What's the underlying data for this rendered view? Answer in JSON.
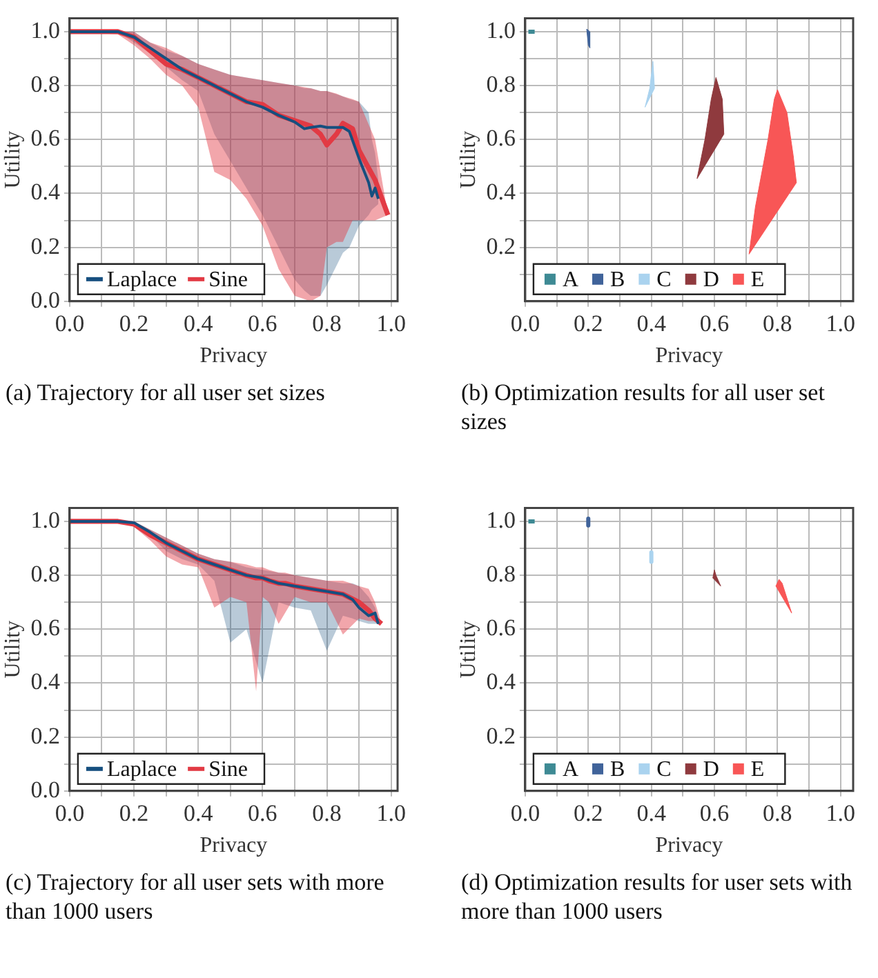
{
  "chart_data": [
    {
      "type": "line",
      "title": "(a) Trajectory for all user set sizes",
      "xlabel": "Privacy",
      "ylabel": "Utility",
      "xlim": [
        0,
        1.02
      ],
      "ylim": [
        0,
        1.05
      ],
      "xticks": [
        {
          "value": 0,
          "label": "0.0"
        },
        {
          "value": 0.1,
          "label": null
        },
        0.2,
        {
          "value": 0.3,
          "label": null
        },
        0.4,
        {
          "value": 0.5,
          "label": null
        },
        0.6,
        {
          "value": 0.7,
          "label": null
        },
        0.8,
        {
          "value": 0.9,
          "label": null
        },
        {
          "value": 1,
          "label": "1.0"
        }
      ],
      "yticks": [
        {
          "value": 0,
          "label": "0.0"
        },
        {
          "value": 0.1,
          "label": null
        },
        0.2,
        {
          "value": 0.3,
          "label": null
        },
        0.4,
        {
          "value": 0.5,
          "label": null
        },
        0.6,
        {
          "value": 0.7,
          "label": null
        },
        0.8,
        {
          "value": 0.9,
          "label": null
        },
        {
          "value": 1,
          "label": "1.0"
        }
      ],
      "grid": true,
      "legend": "bottom left",
      "marker": "none",
      "line_style": "solid",
      "series": [
        {
          "name": "Laplace",
          "color": "#164f7f",
          "x": [
            0,
            0.15,
            0.2,
            0.25,
            0.3,
            0.35,
            0.4,
            0.45,
            0.5,
            0.55,
            0.6,
            0.65,
            0.7,
            0.73,
            0.75,
            0.78,
            0.8,
            0.85,
            0.87,
            0.9,
            0.93,
            0.94,
            0.95,
            0.96
          ],
          "values": [
            1,
            1,
            0.98,
            0.94,
            0.9,
            0.86,
            0.83,
            0.8,
            0.77,
            0.74,
            0.72,
            0.69,
            0.665,
            0.64,
            0.645,
            0.65,
            0.645,
            0.645,
            0.63,
            0.53,
            0.44,
            0.39,
            0.42,
            0.38
          ],
          "upper": [
            1,
            1,
            1,
            0.96,
            0.93,
            0.91,
            0.88,
            0.86,
            0.84,
            0.83,
            0.82,
            0.81,
            0.8,
            0.79,
            0.79,
            0.78,
            0.78,
            0.76,
            0.75,
            0.74,
            0.7,
            0.6,
            0.55,
            0.45
          ],
          "lower": [
            1,
            1,
            0.96,
            0.92,
            0.87,
            0.82,
            0.78,
            0.62,
            0.52,
            0.42,
            0.32,
            0.2,
            0.08,
            0.04,
            0.02,
            0.02,
            0.06,
            0.18,
            0.2,
            0.28,
            0.32,
            0.34,
            0.35,
            0.36
          ]
        },
        {
          "name": "Sine",
          "color": "#e23a44",
          "x": [
            0,
            0.15,
            0.2,
            0.25,
            0.3,
            0.35,
            0.4,
            0.45,
            0.5,
            0.55,
            0.6,
            0.65,
            0.7,
            0.75,
            0.78,
            0.8,
            0.83,
            0.85,
            0.88,
            0.9,
            0.95,
            0.99
          ],
          "values": [
            1,
            1,
            0.98,
            0.93,
            0.88,
            0.86,
            0.83,
            0.8,
            0.77,
            0.74,
            0.73,
            0.69,
            0.67,
            0.65,
            0.62,
            0.58,
            0.62,
            0.66,
            0.64,
            0.56,
            0.45,
            0.32
          ],
          "upper": [
            1,
            1,
            1,
            0.96,
            0.94,
            0.91,
            0.88,
            0.86,
            0.84,
            0.83,
            0.82,
            0.81,
            0.8,
            0.79,
            0.78,
            0.78,
            0.77,
            0.76,
            0.75,
            0.74,
            0.6,
            0.32
          ],
          "lower": [
            1,
            0.99,
            0.95,
            0.9,
            0.84,
            0.8,
            0.72,
            0.48,
            0.45,
            0.38,
            0.28,
            0.12,
            0.02,
            0,
            0.02,
            0.2,
            0.22,
            0.22,
            0.3,
            0.3,
            0.3,
            0.32
          ]
        }
      ]
    },
    {
      "type": "area",
      "title": "(b) Optimization results for all user set sizes",
      "xlabel": "Privacy",
      "ylabel": "Utility",
      "xlim": [
        0,
        1.04
      ],
      "ylim": [
        0,
        1.05
      ],
      "xticks": [
        {
          "value": 0,
          "label": "0.0"
        },
        {
          "value": 0.1,
          "label": null
        },
        0.2,
        {
          "value": 0.3,
          "label": null
        },
        0.4,
        {
          "value": 0.5,
          "label": null
        },
        0.6,
        {
          "value": 0.7,
          "label": null
        },
        0.8,
        {
          "value": 0.9,
          "label": null
        },
        {
          "value": 1,
          "label": "1.0"
        }
      ],
      "yticks": [
        {
          "value": 0.1,
          "label": null
        },
        0.2,
        {
          "value": 0.3,
          "label": null
        },
        0.4,
        {
          "value": 0.5,
          "label": null
        },
        0.6,
        {
          "value": 0.7,
          "label": null
        },
        0.8,
        {
          "value": 0.9,
          "label": null
        },
        {
          "value": 1,
          "label": "1.0"
        }
      ],
      "grid": true,
      "legend": "bottom left",
      "series": [
        {
          "name": "A",
          "type": "line",
          "color": "#3e8a94",
          "x": [
            0.01,
            0.03
          ],
          "values": [
            1.0,
            1.0
          ]
        },
        {
          "name": "B",
          "color": "#40639a",
          "x": [
            0.195,
            0.205,
            0.205,
            0.2
          ],
          "values": [
            1.01,
            1.0,
            0.94,
            0.95
          ]
        },
        {
          "name": "C",
          "color": "#aad3ef",
          "x": [
            0.405,
            0.41,
            0.38,
            0.395
          ],
          "values": [
            0.89,
            0.79,
            0.72,
            0.79
          ]
        },
        {
          "name": "D",
          "color": "#8f3a3e",
          "x": [
            0.605,
            0.625,
            0.63,
            0.545,
            0.57,
            0.59
          ],
          "values": [
            0.83,
            0.75,
            0.62,
            0.455,
            0.6,
            0.75
          ]
        },
        {
          "name": "E",
          "color": "#f85656",
          "x": [
            0.8,
            0.83,
            0.85,
            0.86,
            0.71,
            0.73,
            0.77,
            0.79
          ],
          "values": [
            0.785,
            0.7,
            0.54,
            0.44,
            0.175,
            0.35,
            0.6,
            0.75
          ]
        }
      ]
    },
    {
      "type": "line",
      "title": "(c) Trajectory for all user sets with more than 1000 users",
      "xlabel": "Privacy",
      "ylabel": "Utility",
      "xlim": [
        0,
        1.02
      ],
      "ylim": [
        0,
        1.05
      ],
      "xticks": [
        {
          "value": 0,
          "label": "0.0"
        },
        {
          "value": 0.1,
          "label": null
        },
        0.2,
        {
          "value": 0.3,
          "label": null
        },
        0.4,
        {
          "value": 0.5,
          "label": null
        },
        0.6,
        {
          "value": 0.7,
          "label": null
        },
        0.8,
        {
          "value": 0.9,
          "label": null
        },
        {
          "value": 1,
          "label": "1.0"
        }
      ],
      "yticks": [
        {
          "value": 0,
          "label": "0.0"
        },
        {
          "value": 0.1,
          "label": null
        },
        0.2,
        {
          "value": 0.3,
          "label": null
        },
        0.4,
        {
          "value": 0.5,
          "label": null
        },
        0.6,
        {
          "value": 0.7,
          "label": null
        },
        0.8,
        {
          "value": 0.9,
          "label": null
        },
        {
          "value": 1,
          "label": "1.0"
        }
      ],
      "grid": true,
      "legend": "bottom left",
      "marker": "none",
      "line_style": "solid",
      "series": [
        {
          "name": "Laplace",
          "color": "#164f7f",
          "x": [
            0,
            0.15,
            0.2,
            0.25,
            0.3,
            0.35,
            0.4,
            0.45,
            0.5,
            0.55,
            0.6,
            0.65,
            0.7,
            0.75,
            0.8,
            0.85,
            0.88,
            0.9,
            0.93,
            0.95,
            0.96
          ],
          "values": [
            1,
            1,
            0.995,
            0.96,
            0.92,
            0.89,
            0.86,
            0.84,
            0.82,
            0.8,
            0.79,
            0.77,
            0.76,
            0.75,
            0.74,
            0.73,
            0.71,
            0.68,
            0.65,
            0.66,
            0.62
          ],
          "upper": [
            1,
            1,
            1,
            0.97,
            0.94,
            0.91,
            0.88,
            0.86,
            0.85,
            0.83,
            0.82,
            0.81,
            0.8,
            0.79,
            0.78,
            0.77,
            0.77,
            0.76,
            0.72,
            0.68,
            0.64
          ],
          "lower": [
            1,
            1,
            0.99,
            0.95,
            0.89,
            0.86,
            0.84,
            0.78,
            0.55,
            0.6,
            0.4,
            0.7,
            0.68,
            0.67,
            0.52,
            0.65,
            0.64,
            0.63,
            0.62,
            0.62,
            0.62
          ]
        },
        {
          "name": "Sine",
          "color": "#e23a44",
          "x": [
            0,
            0.15,
            0.2,
            0.25,
            0.3,
            0.35,
            0.4,
            0.45,
            0.5,
            0.55,
            0.58,
            0.6,
            0.62,
            0.65,
            0.67,
            0.7,
            0.75,
            0.8,
            0.85,
            0.9,
            0.93,
            0.95,
            0.97
          ],
          "values": [
            1,
            1,
            0.99,
            0.95,
            0.92,
            0.89,
            0.86,
            0.84,
            0.82,
            0.8,
            0.79,
            0.79,
            0.78,
            0.77,
            0.77,
            0.76,
            0.75,
            0.74,
            0.73,
            0.7,
            0.67,
            0.64,
            0.62
          ],
          "upper": [
            1,
            1,
            1,
            0.97,
            0.94,
            0.91,
            0.88,
            0.86,
            0.85,
            0.84,
            0.83,
            0.83,
            0.82,
            0.81,
            0.81,
            0.8,
            0.79,
            0.78,
            0.78,
            0.76,
            0.75,
            0.7,
            0.62
          ],
          "lower": [
            1,
            1,
            0.98,
            0.93,
            0.87,
            0.84,
            0.83,
            0.68,
            0.72,
            0.7,
            0.37,
            0.72,
            0.7,
            0.62,
            0.66,
            0.72,
            0.7,
            0.7,
            0.58,
            0.64,
            0.63,
            0.63,
            0.62
          ]
        }
      ]
    },
    {
      "type": "area",
      "title": "(d) Optimization results for user sets with more than 1000 users",
      "xlabel": "Privacy",
      "ylabel": "Utility",
      "xlim": [
        0,
        1.04
      ],
      "ylim": [
        0,
        1.05
      ],
      "xticks": [
        {
          "value": 0,
          "label": "0.0"
        },
        {
          "value": 0.1,
          "label": null
        },
        0.2,
        {
          "value": 0.3,
          "label": null
        },
        0.4,
        {
          "value": 0.5,
          "label": null
        },
        0.6,
        {
          "value": 0.7,
          "label": null
        },
        0.8,
        {
          "value": 0.9,
          "label": null
        },
        {
          "value": 1,
          "label": "1.0"
        }
      ],
      "yticks": [
        {
          "value": 0.1,
          "label": null
        },
        0.2,
        {
          "value": 0.3,
          "label": null
        },
        0.4,
        {
          "value": 0.5,
          "label": null
        },
        0.6,
        {
          "value": 0.7,
          "label": null
        },
        0.8,
        {
          "value": 0.9,
          "label": null
        },
        {
          "value": 1,
          "label": "1.0"
        }
      ],
      "grid": true,
      "legend": "bottom left",
      "series": [
        {
          "name": "A",
          "type": "line",
          "color": "#3e8a94",
          "x": [
            0.01,
            0.03
          ],
          "values": [
            1.0,
            1.0
          ]
        },
        {
          "name": "B",
          "type": "line",
          "color": "#40639a",
          "x": [
            0.2,
            0.2
          ],
          "values": [
            1.01,
            0.985
          ]
        },
        {
          "name": "C",
          "type": "line",
          "color": "#aad3ef",
          "x": [
            0.4,
            0.4
          ],
          "values": [
            0.885,
            0.85
          ]
        },
        {
          "name": "D",
          "color": "#8f3a3e",
          "x": [
            0.6,
            0.605,
            0.62,
            0.595
          ],
          "values": [
            0.82,
            0.8,
            0.76,
            0.79
          ]
        },
        {
          "name": "E",
          "color": "#f85656",
          "x": [
            0.805,
            0.815,
            0.845,
            0.795
          ],
          "values": [
            0.785,
            0.77,
            0.66,
            0.76
          ]
        }
      ]
    }
  ]
}
